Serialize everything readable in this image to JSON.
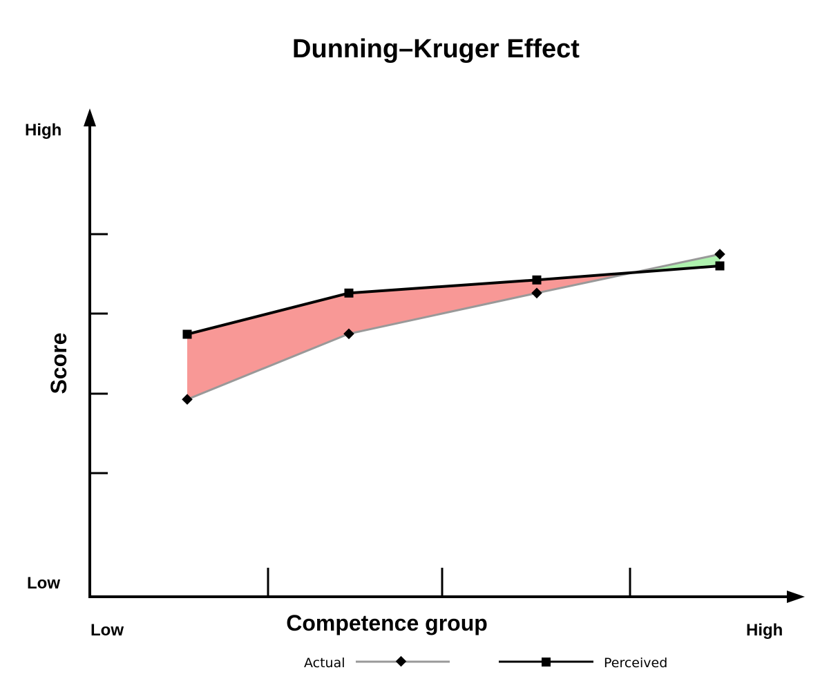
{
  "chart_data": {
    "type": "line",
    "title": "Dunning–Kruger Effect",
    "xlabel": "Competence group",
    "ylabel": "Score",
    "x_low_label": "Low",
    "x_high_label": "High",
    "y_low_label": "Low",
    "y_high_label": "High",
    "x": [
      1,
      2,
      3,
      4
    ],
    "ylim": [
      0,
      100
    ],
    "grid": false,
    "legend_position": "bottom",
    "series": [
      {
        "name": "Actual",
        "values": [
          42.3,
          56.3,
          65.0,
          73.3
        ],
        "color": "#999999",
        "marker": "diamond"
      },
      {
        "name": "Perceived",
        "values": [
          56.2,
          65.0,
          67.8,
          70.8
        ],
        "color": "#000000",
        "marker": "square"
      }
    ],
    "fill_overestimate_color": "#f89896",
    "fill_underestimate_color": "#aef2ae"
  }
}
